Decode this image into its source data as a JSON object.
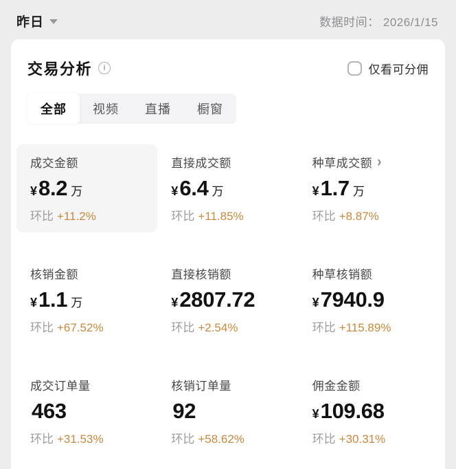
{
  "topbar": {
    "date_filter": "昨日",
    "data_time": "数据时间： 2026/1/15"
  },
  "card": {
    "title": "交易分析",
    "checkbox_label": "仅看可分佣",
    "tabs": [
      {
        "label": "全部",
        "active": true
      },
      {
        "label": "视频",
        "active": false
      },
      {
        "label": "直播",
        "active": false
      },
      {
        "label": "橱窗",
        "active": false
      }
    ]
  },
  "icons": {
    "info": "i",
    "chevron_right": "›",
    "caret_down": "css-triangle-down"
  },
  "colors": {
    "page_bg": "#ededee",
    "card_bg": "#ffffff",
    "highlight_cell_bg": "#f5f5f6",
    "trend_orange": "#c9883c",
    "muted_gray": "#9d9da1"
  },
  "metrics": [
    {
      "label": "成交金额",
      "prefix": "¥",
      "value": "8.2",
      "suffix": "万",
      "trend_label": "环比",
      "trend_value": "+11.2%",
      "highlighted": true
    },
    {
      "label": "直接成交额",
      "prefix": "¥",
      "value": "6.4",
      "suffix": "万",
      "trend_label": "环比",
      "trend_value": "+11.85%"
    },
    {
      "label": "种草成交额",
      "prefix": "¥",
      "value": "1.7",
      "suffix": "万",
      "trend_label": "环比",
      "trend_value": "+8.87%",
      "has_chevron": true
    },
    {
      "label": "核销金额",
      "prefix": "¥",
      "value": "1.1",
      "suffix": "万",
      "trend_label": "环比",
      "trend_value": "+67.52%"
    },
    {
      "label": "直接核销额",
      "prefix": "¥",
      "value": "2807.72",
      "suffix": "",
      "trend_label": "环比",
      "trend_value": "+2.54%"
    },
    {
      "label": "种草核销额",
      "prefix": "¥",
      "value": "7940.9",
      "suffix": "",
      "trend_label": "环比",
      "trend_value": "+115.89%"
    },
    {
      "label": "成交订单量",
      "prefix": "",
      "value": "463",
      "suffix": "",
      "trend_label": "环比",
      "trend_value": "+31.53%"
    },
    {
      "label": "核销订单量",
      "prefix": "",
      "value": "92",
      "suffix": "",
      "trend_label": "环比",
      "trend_value": "+58.62%"
    },
    {
      "label": "佣金金额",
      "prefix": "¥",
      "value": "109.68",
      "suffix": "",
      "trend_label": "环比",
      "trend_value": "+30.31%"
    }
  ]
}
